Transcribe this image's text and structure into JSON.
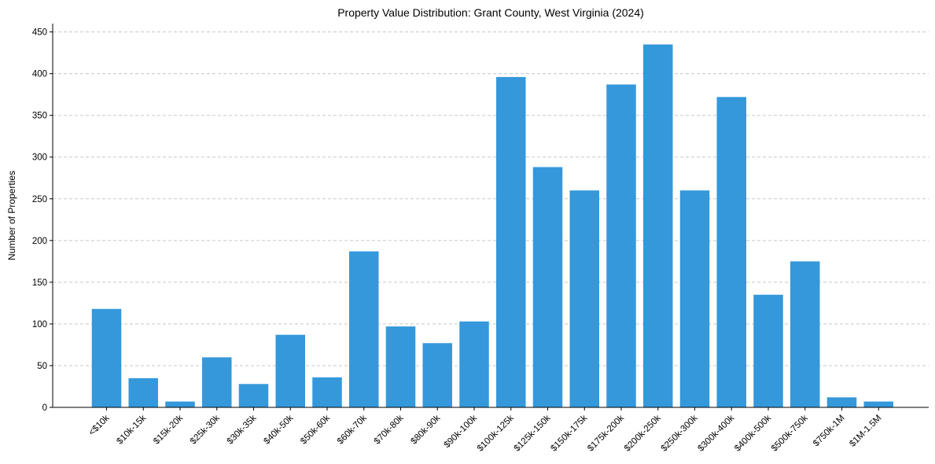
{
  "chart_data": {
    "type": "bar",
    "title": "Property Value Distribution: Grant County, West Virginia (2024)",
    "xlabel": "",
    "ylabel": "Number of Properties",
    "ylim": [
      0,
      460
    ],
    "yticks": [
      0,
      50,
      100,
      150,
      200,
      250,
      300,
      350,
      400,
      450
    ],
    "grid": "y",
    "color": "#3498db",
    "categories": [
      "<$10k",
      "$10k-15k",
      "$15k-20k",
      "$25k-30k",
      "$30k-35k",
      "$40k-50k",
      "$50k-60k",
      "$60k-70k",
      "$70k-80k",
      "$80k-90k",
      "$90k-100k",
      "$100k-125k",
      "$125k-150k",
      "$150k-175k",
      "$175k-200k",
      "$200k-250k",
      "$250k-300k",
      "$300k-400k",
      "$400k-500k",
      "$500k-750k",
      "$750k-1M",
      "$1M-1.5M"
    ],
    "values": [
      118,
      35,
      7,
      60,
      28,
      87,
      36,
      187,
      97,
      77,
      103,
      396,
      288,
      260,
      387,
      435,
      260,
      372,
      135,
      175,
      12,
      7
    ]
  }
}
